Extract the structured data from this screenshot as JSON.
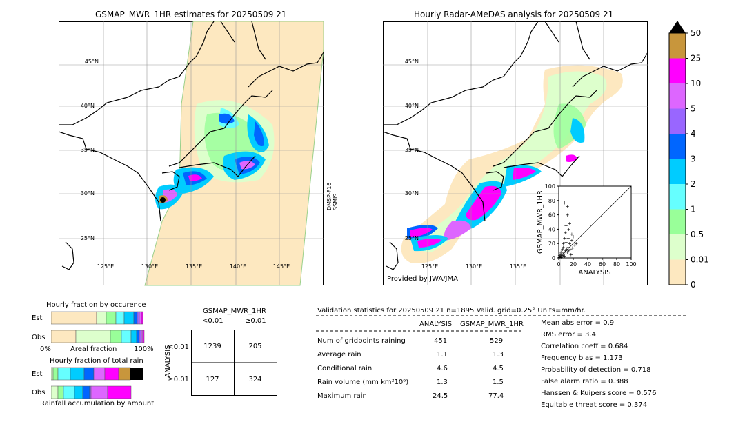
{
  "maps": {
    "left_title": "GSMAP_MWR_1HR estimates for 20250509 21",
    "right_title": "Hourly Radar-AMeDAS analysis for 20250509 21",
    "lat_labels": [
      "45°N",
      "40°N",
      "35°N",
      "30°N",
      "25°N"
    ],
    "lon_labels": [
      "125°E",
      "130°E",
      "135°E",
      "140°E",
      "145°E"
    ],
    "satellite_label_1": "DMSP-F16",
    "satellite_label_2": "SSMIS",
    "provider": "Provided by JWA/JMA"
  },
  "colorbar": {
    "labels": [
      "50",
      "25",
      "10",
      "5",
      "4",
      "3",
      "2",
      "1",
      "0.5",
      "0.01",
      "0"
    ],
    "colors": [
      "#c8963c",
      "#ff00ff",
      "#dd66ff",
      "#9966ff",
      "#0066ff",
      "#00ccff",
      "#66ffff",
      "#99ff99",
      "#ddffcc",
      "#fde8c0"
    ],
    "over_color": "#000000"
  },
  "chart_data": [
    {
      "type": "scatter",
      "title": "",
      "xlabel": "ANALYSIS",
      "ylabel": "GSMAP_MWR_1HR",
      "xlim": [
        0,
        100
      ],
      "ylim": [
        0,
        100
      ],
      "xticks": [
        "0",
        "20",
        "40",
        "60",
        "80",
        "100"
      ],
      "yticks": [
        "0",
        "20",
        "40",
        "60",
        "80",
        "100"
      ],
      "points": [
        [
          1,
          1
        ],
        [
          2,
          3
        ],
        [
          3,
          1
        ],
        [
          4,
          5
        ],
        [
          5,
          2
        ],
        [
          6,
          4
        ],
        [
          7,
          7
        ],
        [
          8,
          3
        ],
        [
          9,
          10
        ],
        [
          10,
          6
        ],
        [
          11,
          12
        ],
        [
          12,
          8
        ],
        [
          13,
          15
        ],
        [
          14,
          10
        ],
        [
          15,
          20
        ],
        [
          16,
          12
        ],
        [
          17,
          5
        ],
        [
          18,
          25
        ],
        [
          19,
          14
        ],
        [
          20,
          30
        ],
        [
          22,
          18
        ],
        [
          24,
          20
        ],
        [
          3,
          8
        ],
        [
          5,
          12
        ],
        [
          6,
          20
        ],
        [
          8,
          28
        ],
        [
          9,
          35
        ],
        [
          10,
          45
        ],
        [
          12,
          60
        ],
        [
          14,
          40
        ],
        [
          8,
          77
        ],
        [
          12,
          72
        ],
        [
          15,
          48
        ],
        [
          18,
          33
        ],
        [
          6,
          15
        ],
        [
          2,
          6
        ],
        [
          4,
          2
        ],
        [
          1,
          4
        ],
        [
          10,
          22
        ],
        [
          13,
          28
        ]
      ]
    },
    {
      "type": "bar",
      "title": "Hourly fraction by occurence",
      "categories": [
        "Est",
        "Obs"
      ],
      "xlabel": "Areal fraction",
      "xticks": [
        "0%",
        "100%"
      ]
    },
    {
      "type": "bar",
      "title": "Hourly fraction of total rain",
      "categories": [
        "Est",
        "Obs"
      ],
      "xlabel": "Rainfall accumulation by amount"
    },
    {
      "type": "table",
      "title": "GSMAP_MWR_1HR",
      "col_headers": [
        "<0.01",
        "≥0.01"
      ],
      "row_headers": [
        "<0.01",
        "≥0.01"
      ],
      "row_axis_label": "ANALYSIS",
      "cells": [
        [
          "1239",
          "205"
        ],
        [
          "127",
          "324"
        ]
      ]
    }
  ],
  "stats": {
    "title": "Validation statistics for 20250509 21  n=1895 Valid. grid=0.25° Units=mm/hr.",
    "col_analysis": "ANALYSIS",
    "col_gsmap": "GSMAP_MWR_1HR",
    "rows": [
      {
        "label": "Num of gridpoints raining",
        "analysis": "451",
        "gsmap": "529"
      },
      {
        "label": "Average rain",
        "analysis": "1.1",
        "gsmap": "1.3"
      },
      {
        "label": "Conditional rain",
        "analysis": "4.6",
        "gsmap": "4.5"
      },
      {
        "label": "Rain volume (mm km²10⁶)",
        "analysis": "1.3",
        "gsmap": "1.5"
      },
      {
        "label": "Maximum rain",
        "analysis": "24.5",
        "gsmap": "77.4"
      }
    ],
    "scores": [
      "Mean abs error =    0.9",
      "RMS error =    3.4",
      "Correlation coeff =  0.684",
      "Frequency bias =  1.173",
      "Probability of detection =  0.718",
      "False alarm ratio =  0.388",
      "Hanssen & Kuipers score =  0.576",
      "Equitable threat score =  0.374"
    ]
  }
}
